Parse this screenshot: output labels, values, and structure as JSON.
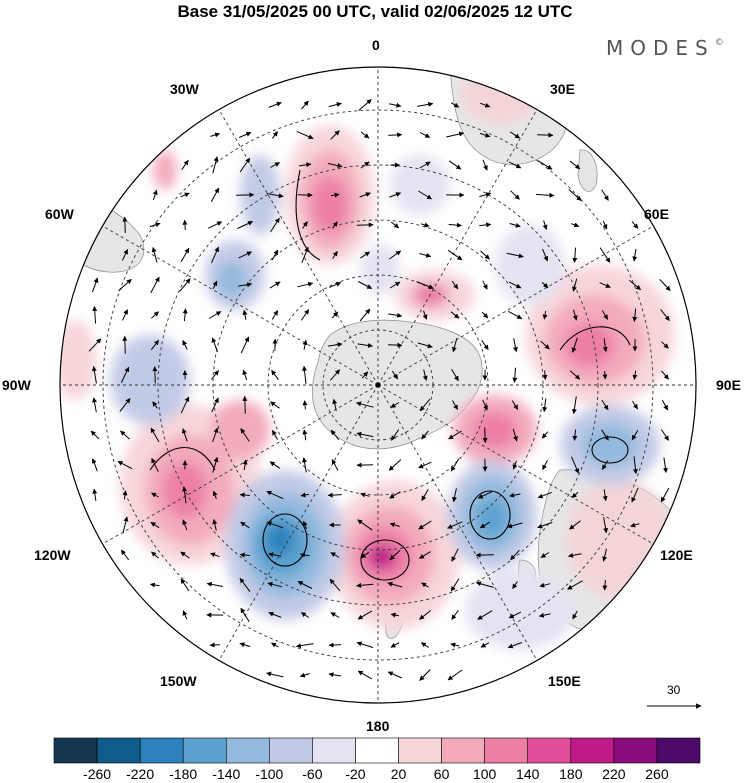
{
  "title": "Base 31/05/2025 00 UTC, valid 02/06/2025 12 UTC",
  "brand": {
    "name": "MODES",
    "mark": "©"
  },
  "meridian_labels": {
    "lon_0": "0",
    "lon_30E": "30E",
    "lon_60E": "60E",
    "lon_90E": "90E",
    "lon_120E": "120E",
    "lon_150E": "150E",
    "lon_180": "180",
    "lon_150W": "150W",
    "lon_120W": "120W",
    "lon_90W": "90W",
    "lon_60W": "60W",
    "lon_30W": "30W"
  },
  "reference_vector": {
    "value": "30"
  },
  "colorbar": {
    "ticks": [
      "-260",
      "-220",
      "-180",
      "-140",
      "-100",
      "-60",
      "-20",
      "20",
      "60",
      "100",
      "140",
      "180",
      "220",
      "260"
    ],
    "colors": [
      "#15374f",
      "#0f5c8c",
      "#2b82bd",
      "#5ba2d0",
      "#93b9dd",
      "#c2cbe6",
      "#e4e3f1",
      "#ffffff",
      "#f7d6d9",
      "#f3abbb",
      "#ed7fa7",
      "#e14f9b",
      "#c01a88",
      "#8a0b7e",
      "#4e0a6b"
    ]
  }
}
